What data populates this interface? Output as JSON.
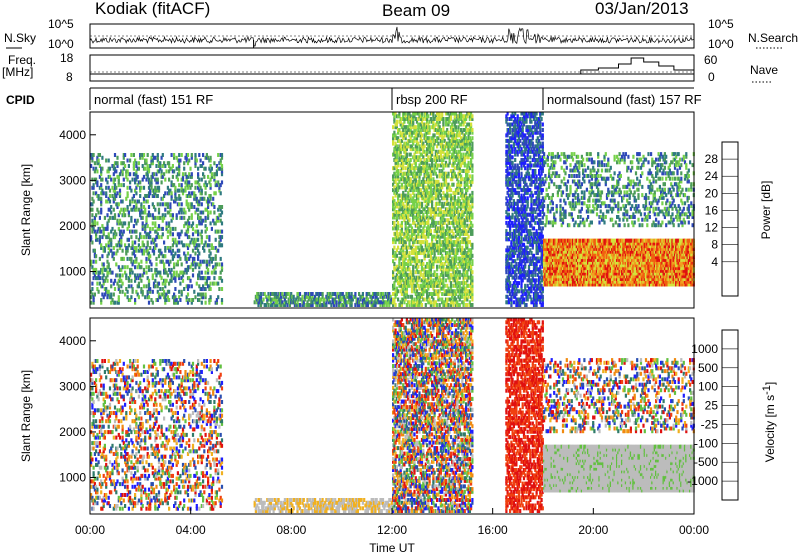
{
  "header": {
    "station": "Kodiak (fitACF)",
    "beam": "Beam 09",
    "date": "03/Jan/2013"
  },
  "noise_panel": {
    "left_label": "N.Sky",
    "right_label": "N.Search",
    "left_ticks": [
      "10^5",
      "10^0"
    ],
    "right_ticks": [
      "10^5",
      "10^0"
    ]
  },
  "freq_panel": {
    "left_label_1": "Freq.",
    "left_label_2": "[MHz]",
    "right_label": "Nave",
    "left_ticks": [
      "18",
      "8"
    ],
    "right_ticks": [
      "60",
      "0"
    ]
  },
  "cpid": {
    "label": "CPID",
    "segments": [
      {
        "name": "normal (fast) 151 RF",
        "start_hour": 0.0
      },
      {
        "name": "rbsp 200 RF",
        "start_hour": 12.0
      },
      {
        "name": "normalsound (fast) 157 RF",
        "start_hour": 18.0
      }
    ]
  },
  "panels": {
    "power": {
      "ylabel": "Slant Range [km]",
      "cbar_label": "Power [dB]",
      "cbar_ticks": [
        "28",
        "24",
        "20",
        "16",
        "12",
        "8",
        "4"
      ]
    },
    "velocity": {
      "ylabel": "Slant Range [km]",
      "cbar_label": "Velocity [m s",
      "cbar_label_sup": "-1",
      "cbar_label_end": "]",
      "cbar_ticks": [
        "1000",
        "500",
        "100",
        "25",
        "-25",
        "-100",
        "-500",
        "-1000"
      ]
    }
  },
  "xaxis": {
    "label": "Time UT",
    "ticks": [
      "00:00",
      "04:00",
      "08:00",
      "12:00",
      "16:00",
      "20:00",
      "00:00"
    ]
  },
  "colors": {
    "power_scale": [
      "#1e1eff",
      "#2e49b8",
      "#2f7a80",
      "#4d9c5a",
      "#76d14a",
      "#d4e23a",
      "#f0a020",
      "#f06010",
      "#e01010"
    ],
    "velocity_scale": [
      "#1e1eff",
      "#2a4fb0",
      "#2f7a6a",
      "#62c040",
      "#bcbcbc",
      "#f0b020",
      "#f08a10",
      "#f04010",
      "#e01010"
    ]
  },
  "chart_data": {
    "type": "heatmap",
    "x_unit": "hours UT",
    "xlim": [
      0,
      24
    ],
    "ylim": [
      200,
      4500
    ],
    "yticks": [
      1000,
      2000,
      3000,
      4000
    ],
    "power_range_db": [
      0,
      30
    ],
    "velocity_range_ms": [
      -1000,
      1000
    ],
    "scatter_regions": [
      {
        "t0": 0.0,
        "t1": 5.2,
        "r0": 300,
        "r1": 3600,
        "power_db": "4-16",
        "velocity": "mixed"
      },
      {
        "t0": 6.5,
        "t1": 12.0,
        "r0": 250,
        "r1": 500,
        "power_db": "8-12",
        "velocity": "-25 to 25"
      },
      {
        "t0": 12.0,
        "t1": 15.2,
        "r0": 250,
        "r1": 4500,
        "power_db": "8-20",
        "velocity": "-500 to 500"
      },
      {
        "t0": 16.5,
        "t1": 18.0,
        "r0": 250,
        "r1": 4500,
        "power_db": "4-12",
        "velocity": "-1000 to -500"
      },
      {
        "t0": 18.0,
        "t1": 24.0,
        "r0": 700,
        "r1": 1700,
        "power_db": "16-28",
        "velocity": "-25 to 25"
      },
      {
        "t0": 18.0,
        "t1": 24.0,
        "r0": 2000,
        "r1": 3600,
        "power_db": "8-20",
        "velocity": "-100 to 100"
      }
    ]
  }
}
